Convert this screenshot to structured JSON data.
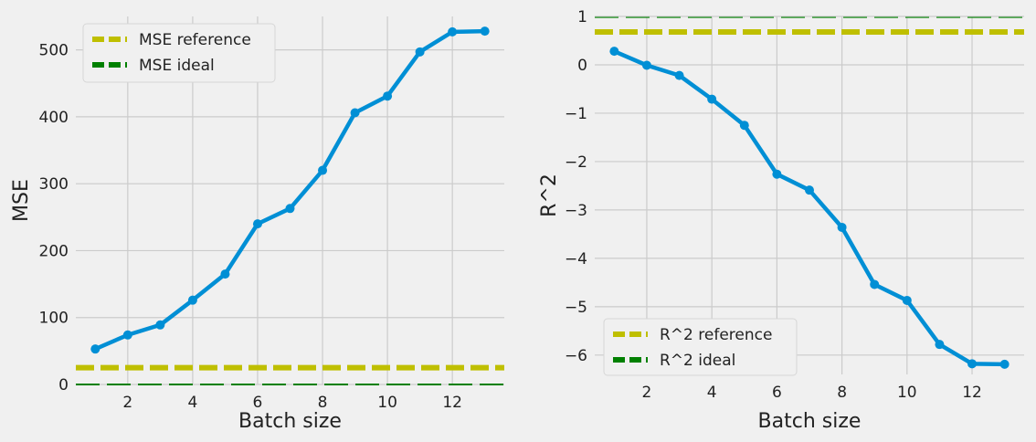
{
  "chart_data": [
    {
      "type": "line",
      "xlabel": "Batch size",
      "ylabel": "MSE",
      "xlim": [
        0.4,
        13.6
      ],
      "ylim": [
        0,
        550
      ],
      "xticks": [
        2,
        4,
        6,
        8,
        10,
        12
      ],
      "yticks": [
        0,
        100,
        200,
        300,
        400,
        500
      ],
      "grid": true,
      "legend_position": "top-left",
      "series": [
        {
          "x": [
            1,
            2,
            3,
            4,
            5,
            6,
            7,
            8,
            9,
            10,
            11,
            12,
            13
          ],
          "values": [
            53,
            74,
            89,
            126,
            165,
            240,
            263,
            320,
            406,
            431,
            497,
            527,
            528
          ],
          "color": "#008fd5",
          "marker": "circle"
        }
      ],
      "reference_lines": [
        {
          "name": "MSE reference",
          "y": 25,
          "color": "#bfbf00",
          "style": "dashed"
        },
        {
          "name": "MSE ideal",
          "y": 0,
          "color": "#008000",
          "style": "dashed"
        }
      ]
    },
    {
      "type": "line",
      "xlabel": "Batch size",
      "ylabel": "R^2",
      "xlim": [
        0.4,
        13.6
      ],
      "ylim": [
        -6.4,
        1.0
      ],
      "xticks": [
        2,
        4,
        6,
        8,
        10,
        12
      ],
      "yticks": [
        -6,
        -5,
        -4,
        -3,
        -2,
        -1,
        0,
        1
      ],
      "ytick_labels": [
        "−6",
        "−5",
        "−4",
        "−3",
        "−2",
        "−1",
        "0",
        "1"
      ],
      "grid": true,
      "legend_position": "bottom-left",
      "series": [
        {
          "x": [
            1,
            2,
            3,
            4,
            5,
            6,
            7,
            8,
            9,
            10,
            11,
            12,
            13
          ],
          "values": [
            0.28,
            -0.01,
            -0.22,
            -0.71,
            -1.25,
            -2.26,
            -2.59,
            -3.36,
            -4.54,
            -4.87,
            -5.78,
            -6.18,
            -6.19
          ],
          "color": "#008fd5",
          "marker": "circle"
        }
      ],
      "reference_lines": [
        {
          "name": "R^2 reference",
          "y": 0.68,
          "color": "#bfbf00",
          "style": "dashed"
        },
        {
          "name": "R^2 ideal",
          "y": 0.98,
          "color": "#008000",
          "style": "dashed"
        }
      ]
    }
  ]
}
